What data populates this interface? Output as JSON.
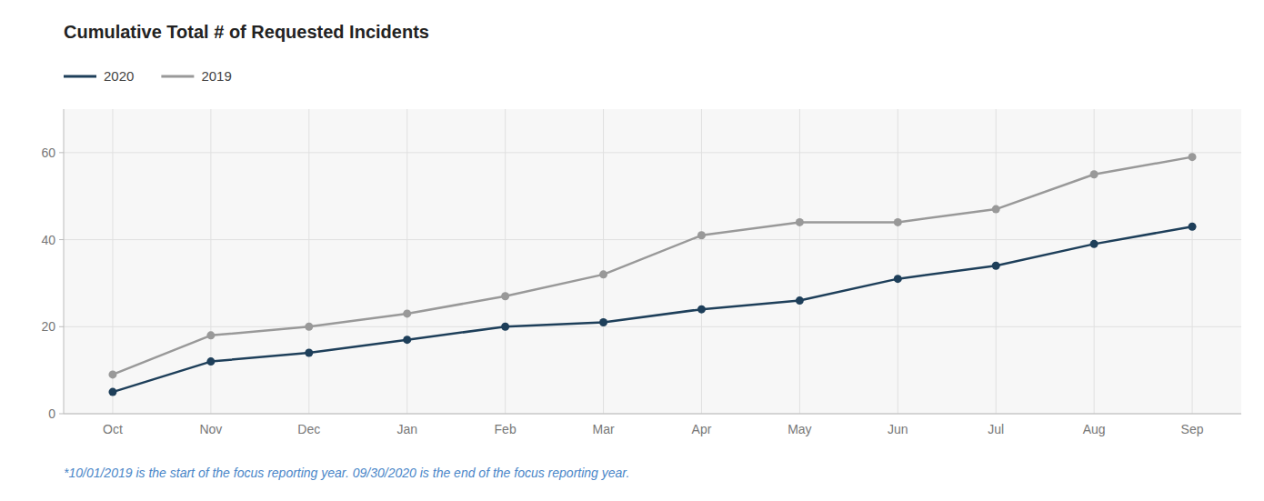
{
  "chart_data": {
    "type": "line",
    "title": "Cumulative Total # of Requested Incidents",
    "categories": [
      "Oct",
      "Nov",
      "Dec",
      "Jan",
      "Feb",
      "Mar",
      "Apr",
      "May",
      "Jun",
      "Jul",
      "Aug",
      "Sep"
    ],
    "series": [
      {
        "name": "2020",
        "color": "#1e3f5a",
        "values": [
          5,
          12,
          14,
          17,
          20,
          21,
          24,
          26,
          31,
          34,
          39,
          43
        ]
      },
      {
        "name": "2019",
        "color": "#999999",
        "values": [
          9,
          18,
          20,
          23,
          27,
          32,
          41,
          44,
          44,
          47,
          55,
          59
        ]
      }
    ],
    "ylim": [
      0,
      70
    ],
    "yticks": [
      0,
      20,
      40,
      60
    ],
    "grid": true,
    "legend": "top-left",
    "marker": "circle",
    "annotation": "*10/01/2019 is the start of the focus reporting year. 09/30/2020 is the end of the focus reporting year."
  }
}
